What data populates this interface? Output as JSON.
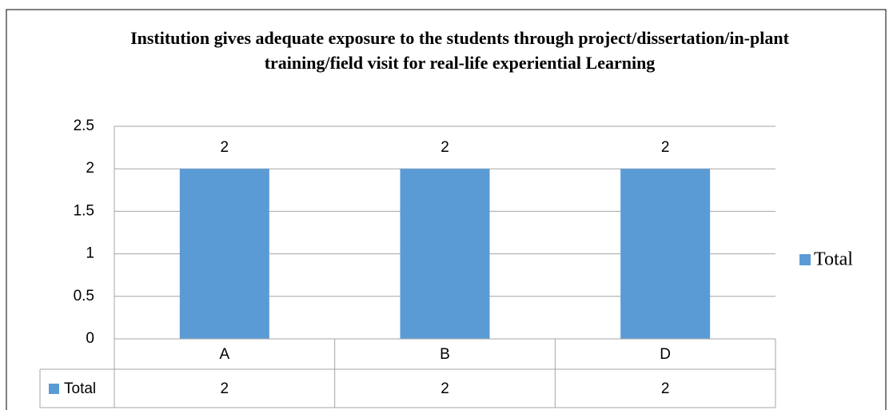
{
  "chart_data": {
    "type": "bar",
    "title": "Institution gives adequate exposure to the students through project/dissertation/in-plant training/field visit for real-life experiential Learning",
    "categories": [
      "A",
      "B",
      "D"
    ],
    "series": [
      {
        "name": "Total",
        "color": "#5b9bd5",
        "values": [
          2,
          2,
          2
        ]
      }
    ],
    "ylim": [
      0,
      2.5
    ],
    "yticks": [
      0,
      0.5,
      1,
      1.5,
      2,
      2.5
    ],
    "grid": true,
    "legend": "right",
    "data_labels": true,
    "data_table": true
  }
}
